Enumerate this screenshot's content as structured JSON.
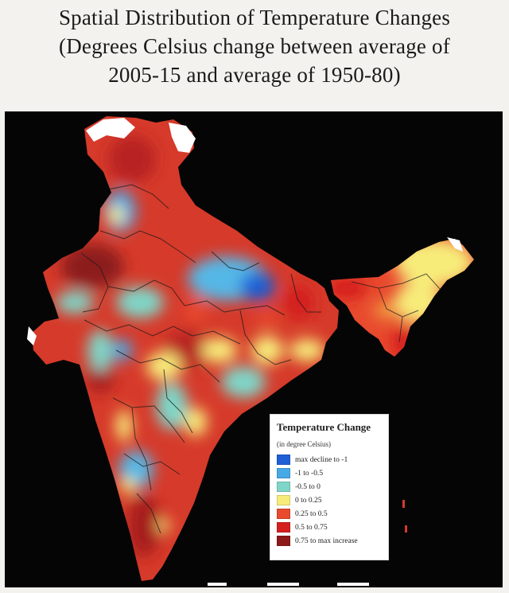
{
  "title": {
    "lines": [
      "Spatial Distribution of Temperature Changes",
      "(Degrees Celsius change between average of",
      "2005-15 and average of 1950-80)"
    ]
  },
  "legend": {
    "title": "Temperature Change",
    "subtitle": "(in degree Celsius)",
    "items": [
      {
        "label": "max decline to -1",
        "color": "#1f5fd6"
      },
      {
        "label": "-1 to -0.5",
        "color": "#47a9e6"
      },
      {
        "label": "-0.5 to 0",
        "color": "#7fd6c8"
      },
      {
        "label": "0 to 0.25",
        "color": "#f7ec7a"
      },
      {
        "label": "0.25 to 0.5",
        "color": "#e84a2e"
      },
      {
        "label": "0.5 to 0.75",
        "color": "#d41f1f"
      },
      {
        "label": "0.75 to max increase",
        "color": "#8c1a1a"
      }
    ]
  },
  "map": {
    "region": "India",
    "background_color": "#050505",
    "dominant_color": "#d63a2a"
  }
}
